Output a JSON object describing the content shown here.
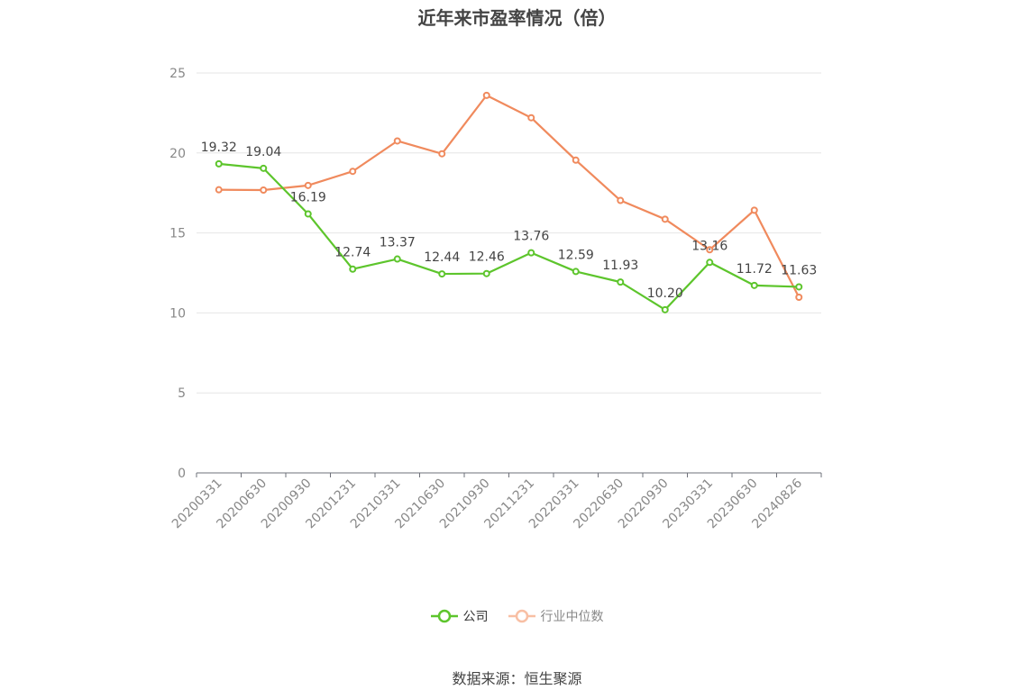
{
  "chart_data": {
    "type": "line",
    "title": "近年来市盈率情况（倍）",
    "categories": [
      "20200331",
      "20200630",
      "20200930",
      "20201231",
      "20210331",
      "20210630",
      "20210930",
      "20211231",
      "20220331",
      "20220630",
      "20220930",
      "20230331",
      "20230630",
      "20240826"
    ],
    "series": [
      {
        "name": "公司",
        "color": "#5dc52c",
        "values": [
          19.32,
          19.04,
          16.19,
          12.74,
          13.37,
          12.44,
          12.46,
          13.76,
          12.59,
          11.93,
          10.2,
          13.16,
          11.72,
          11.63
        ],
        "labels": [
          "19.32",
          "19.04",
          "16.19",
          "12.74",
          "13.37",
          "12.44",
          "12.46",
          "13.76",
          "12.59",
          "11.93",
          "10.20",
          "13.16",
          "11.72",
          "11.63"
        ]
      },
      {
        "name": "行业中位数",
        "color": "#f08a5d",
        "legend_color": "#f8bfa4",
        "values": [
          17.7,
          17.68,
          17.97,
          18.85,
          20.75,
          19.95,
          23.6,
          22.2,
          19.55,
          17.03,
          15.86,
          13.95,
          16.42,
          10.98
        ]
      }
    ],
    "ylim": [
      0,
      25
    ],
    "yticks": [
      "0",
      "5",
      "10",
      "15",
      "20",
      "25"
    ],
    "grid": true,
    "legend_position": "bottom"
  },
  "source": "数据来源：恒生聚源"
}
